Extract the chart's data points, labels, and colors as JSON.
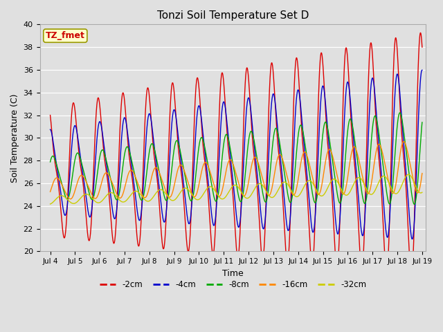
{
  "title": "Tonzi Soil Temperature Set D",
  "xlabel": "Time",
  "ylabel": "Soil Temperature (C)",
  "ylim": [
    20,
    40
  ],
  "xlim_days": [
    3.58,
    19.15
  ],
  "xtick_positions": [
    4,
    5,
    6,
    7,
    8,
    9,
    10,
    11,
    12,
    13,
    14,
    15,
    16,
    17,
    18,
    19
  ],
  "xtick_labels": [
    "Jul 4",
    "Jul 5",
    "Jul 6",
    "Jul 7",
    "Jul 8",
    "Jul 9",
    "Jul 10",
    "Jul 11",
    "Jul 12",
    "Jul 13",
    "Jul 14",
    "Jul 15",
    "Jul 16",
    "Jul 17",
    "Jul 18",
    "Jul 19"
  ],
  "annotation_text": "TZ_fmet",
  "annotation_color": "#cc0000",
  "annotation_bg": "#ffffcc",
  "annotation_border": "#999900",
  "line_colors": {
    "-2cm": "#dd0000",
    "-4cm": "#0000cc",
    "-8cm": "#00aa00",
    "-16cm": "#ff8800",
    "-32cm": "#cccc00"
  },
  "bg_color": "#e0e0e0",
  "grid_color": "#ffffff",
  "n_points": 1500
}
